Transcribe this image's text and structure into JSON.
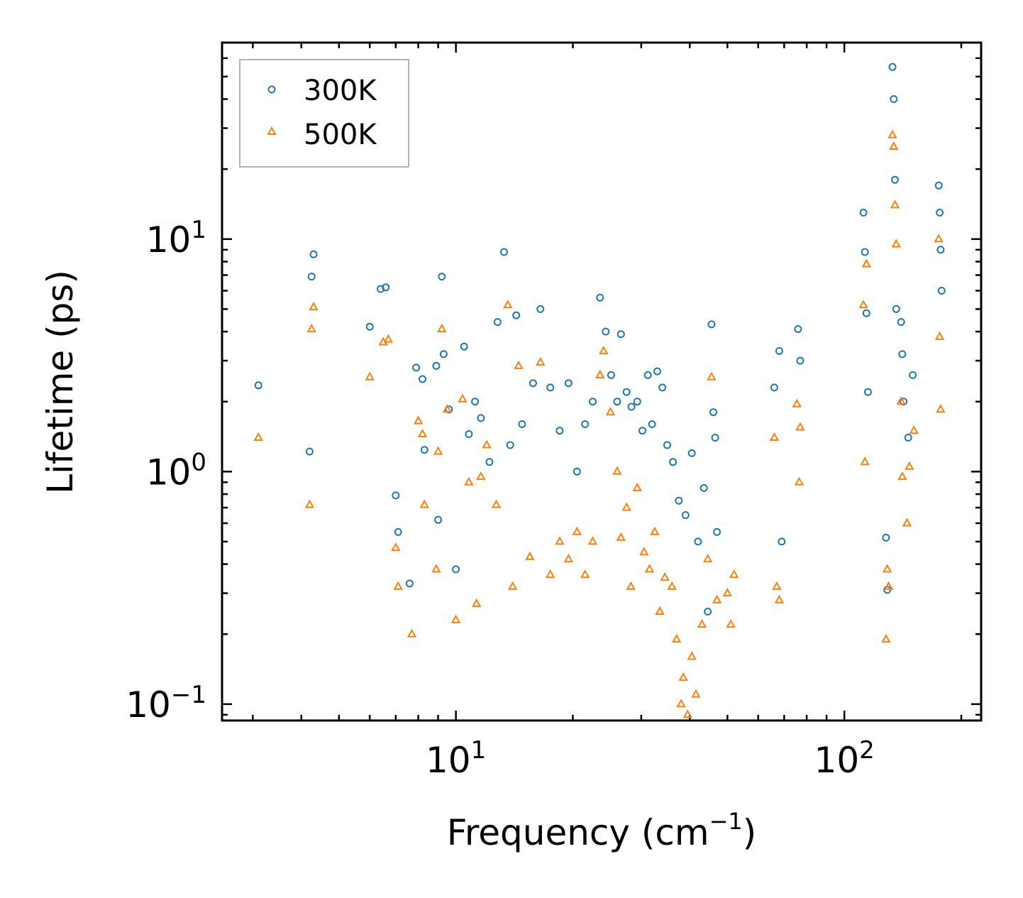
{
  "chart_data": {
    "type": "scatter",
    "title": "",
    "xlabel": "Frequency (cm",
    "xlabel_sup": "−1",
    "xlabel_tail": ")",
    "ylabel": "Lifetime (ps)",
    "xscale": "log",
    "yscale": "log",
    "xlim": [
      2.5,
      225
    ],
    "ylim": [
      0.085,
      70
    ],
    "x_ticks": [
      {
        "value": 10,
        "base": "10",
        "exp": "1"
      },
      {
        "value": 100,
        "base": "10",
        "exp": "2"
      }
    ],
    "y_ticks": [
      {
        "value": 0.1,
        "base": "10",
        "exp": "−1"
      },
      {
        "value": 1,
        "base": "10",
        "exp": "0"
      },
      {
        "value": 10,
        "base": "10",
        "exp": "1"
      }
    ],
    "legend_position": "top-left",
    "series": [
      {
        "name": "300K",
        "marker": "circle",
        "color": "#1f77b4",
        "points": [
          [
            3.1,
            2.35
          ],
          [
            4.2,
            1.22
          ],
          [
            4.25,
            6.9
          ],
          [
            4.3,
            8.6
          ],
          [
            6.0,
            4.2
          ],
          [
            6.4,
            6.1
          ],
          [
            6.6,
            6.2
          ],
          [
            7.0,
            0.79
          ],
          [
            7.1,
            0.55
          ],
          [
            7.6,
            0.33
          ],
          [
            7.9,
            2.8
          ],
          [
            8.2,
            2.5
          ],
          [
            8.3,
            1.24
          ],
          [
            8.9,
            2.85
          ],
          [
            9.0,
            0.62
          ],
          [
            9.2,
            6.9
          ],
          [
            9.3,
            3.2
          ],
          [
            9.6,
            1.85
          ],
          [
            10.0,
            0.38
          ],
          [
            10.5,
            3.45
          ],
          [
            10.8,
            1.45
          ],
          [
            11.2,
            2.0
          ],
          [
            11.6,
            1.7
          ],
          [
            12.2,
            1.1
          ],
          [
            12.8,
            4.4
          ],
          [
            13.3,
            8.8
          ],
          [
            13.8,
            1.3
          ],
          [
            14.3,
            4.7
          ],
          [
            14.8,
            1.6
          ],
          [
            15.8,
            2.4
          ],
          [
            16.5,
            5.0
          ],
          [
            17.5,
            2.3
          ],
          [
            18.5,
            1.5
          ],
          [
            19.5,
            2.4
          ],
          [
            20.5,
            1.0
          ],
          [
            21.5,
            1.6
          ],
          [
            22.5,
            2.0
          ],
          [
            23.5,
            5.6
          ],
          [
            24.3,
            4.0
          ],
          [
            25.1,
            2.6
          ],
          [
            26.0,
            2.0
          ],
          [
            26.6,
            3.9
          ],
          [
            27.5,
            2.2
          ],
          [
            28.3,
            1.9
          ],
          [
            29.3,
            2.0
          ],
          [
            30.2,
            1.5
          ],
          [
            31.2,
            2.6
          ],
          [
            32.0,
            1.6
          ],
          [
            33.0,
            2.7
          ],
          [
            34.0,
            2.3
          ],
          [
            35.0,
            1.3
          ],
          [
            36.2,
            1.1
          ],
          [
            37.5,
            0.75
          ],
          [
            39.0,
            0.65
          ],
          [
            40.5,
            1.2
          ],
          [
            42.0,
            0.5
          ],
          [
            43.5,
            0.85
          ],
          [
            44.5,
            0.25
          ],
          [
            45.5,
            4.3
          ],
          [
            46.0,
            1.8
          ],
          [
            46.5,
            1.4
          ],
          [
            47.0,
            0.55
          ],
          [
            66.0,
            2.3
          ],
          [
            68.0,
            3.3
          ],
          [
            69.0,
            0.5
          ],
          [
            76.0,
            4.1
          ],
          [
            77.0,
            3.0
          ],
          [
            112,
            13
          ],
          [
            113,
            8.8
          ],
          [
            114,
            4.8
          ],
          [
            115,
            2.2
          ],
          [
            128,
            0.52
          ],
          [
            129,
            0.31
          ],
          [
            133,
            55
          ],
          [
            134,
            40
          ],
          [
            135,
            18
          ],
          [
            136,
            5.0
          ],
          [
            140,
            4.4
          ],
          [
            141,
            3.2
          ],
          [
            142,
            2.0
          ],
          [
            146,
            1.4
          ],
          [
            150,
            2.6
          ],
          [
            175,
            17
          ],
          [
            176,
            13
          ],
          [
            177,
            9.0
          ],
          [
            178,
            6.0
          ]
        ]
      },
      {
        "name": "500K",
        "marker": "triangle",
        "color": "#ff7f0e",
        "points": [
          [
            3.1,
            1.4
          ],
          [
            4.2,
            0.72
          ],
          [
            4.25,
            4.1
          ],
          [
            4.3,
            5.1
          ],
          [
            6.0,
            2.55
          ],
          [
            6.5,
            3.6
          ],
          [
            6.7,
            3.7
          ],
          [
            7.0,
            0.47
          ],
          [
            7.1,
            0.32
          ],
          [
            7.7,
            0.2
          ],
          [
            8.0,
            1.65
          ],
          [
            8.2,
            1.45
          ],
          [
            8.3,
            0.72
          ],
          [
            8.9,
            0.38
          ],
          [
            9.0,
            1.22
          ],
          [
            9.2,
            4.1
          ],
          [
            9.5,
            1.85
          ],
          [
            10.0,
            0.23
          ],
          [
            10.4,
            2.05
          ],
          [
            10.8,
            0.9
          ],
          [
            11.3,
            0.27
          ],
          [
            11.6,
            0.95
          ],
          [
            12.0,
            1.3
          ],
          [
            12.7,
            0.72
          ],
          [
            13.6,
            5.2
          ],
          [
            14.0,
            0.32
          ],
          [
            14.5,
            2.85
          ],
          [
            15.5,
            0.43
          ],
          [
            16.5,
            2.95
          ],
          [
            17.5,
            0.36
          ],
          [
            18.5,
            0.5
          ],
          [
            19.5,
            0.42
          ],
          [
            20.5,
            0.55
          ],
          [
            21.5,
            0.36
          ],
          [
            22.5,
            0.5
          ],
          [
            23.5,
            2.6
          ],
          [
            24.0,
            3.3
          ],
          [
            25.0,
            1.8
          ],
          [
            26.0,
            1.0
          ],
          [
            26.6,
            0.52
          ],
          [
            27.5,
            0.7
          ],
          [
            28.2,
            0.32
          ],
          [
            29.3,
            0.85
          ],
          [
            30.5,
            0.45
          ],
          [
            31.5,
            0.38
          ],
          [
            32.5,
            0.55
          ],
          [
            33.5,
            0.25
          ],
          [
            34.5,
            0.35
          ],
          [
            36.0,
            0.32
          ],
          [
            37.0,
            0.19
          ],
          [
            38.0,
            0.1
          ],
          [
            38.5,
            0.13
          ],
          [
            39.5,
            0.09
          ],
          [
            40.5,
            0.16
          ],
          [
            41.5,
            0.11
          ],
          [
            43.0,
            0.22
          ],
          [
            44.5,
            0.42
          ],
          [
            45.5,
            2.55
          ],
          [
            47.0,
            0.28
          ],
          [
            50.0,
            0.3
          ],
          [
            51.0,
            0.22
          ],
          [
            52.0,
            0.36
          ],
          [
            66.0,
            1.4
          ],
          [
            67.0,
            0.32
          ],
          [
            68.0,
            0.28
          ],
          [
            75.5,
            1.95
          ],
          [
            76.5,
            0.9
          ],
          [
            77.0,
            1.55
          ],
          [
            112,
            5.2
          ],
          [
            113,
            1.1
          ],
          [
            114,
            7.8
          ],
          [
            128,
            0.19
          ],
          [
            129,
            0.38
          ],
          [
            130,
            0.32
          ],
          [
            133,
            28
          ],
          [
            134,
            25
          ],
          [
            135,
            14
          ],
          [
            136,
            9.5
          ],
          [
            140,
            2.0
          ],
          [
            141,
            0.95
          ],
          [
            145,
            0.6
          ],
          [
            147,
            1.05
          ],
          [
            151,
            1.5
          ],
          [
            175,
            10
          ],
          [
            176,
            3.8
          ],
          [
            177,
            1.85
          ]
        ]
      }
    ]
  }
}
